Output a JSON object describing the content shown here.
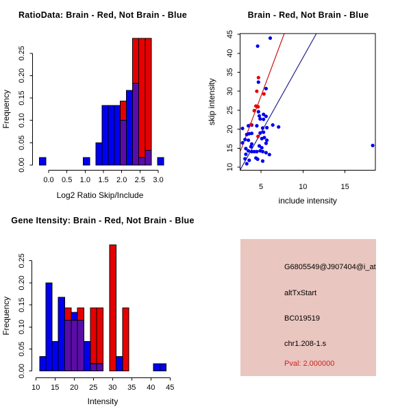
{
  "colors": {
    "blue": "#0000EE",
    "red": "#E60000",
    "purple": "#5A0CA8",
    "line_red": "#CC1111",
    "line_blue": "#202090",
    "axis_black": "#000000",
    "panel_pink": "#E9C6BF",
    "pval_red": "#CC2222"
  },
  "chart_data": [
    {
      "id": "ratio_hist",
      "type": "bar",
      "title": "RatioData: Brain - Red, Not Brain - Blue",
      "xlabel": "Log2 Ratio Skip/Include",
      "ylabel": "Frequency",
      "legend_note": "Brain = red, Not Brain = blue, overlap shown purple",
      "xticks": [
        "0.0",
        "0.5",
        "1.0",
        "1.5",
        "2.0",
        "2.5",
        "3.0"
      ],
      "yticks": [
        "0.00",
        "0.05",
        "0.10",
        "0.15",
        "0.20",
        "0.25"
      ],
      "xlim": [
        -0.4,
        3.3
      ],
      "ylim": [
        0,
        0.283
      ],
      "grid": false,
      "bars": [
        {
          "x0": -0.25,
          "x1": -0.08,
          "segs": [
            [
              "blue",
              0,
              0.017
            ]
          ]
        },
        {
          "x0": 0.95,
          "x1": 1.12,
          "segs": [
            [
              "blue",
              0,
              0.017
            ]
          ]
        },
        {
          "x0": 1.29,
          "x1": 1.46,
          "segs": [
            [
              "blue",
              0,
              0.05
            ]
          ]
        },
        {
          "x0": 1.46,
          "x1": 1.63,
          "segs": [
            [
              "blue",
              0,
              0.133
            ]
          ]
        },
        {
          "x0": 1.63,
          "x1": 1.79,
          "segs": [
            [
              "blue",
              0,
              0.133
            ]
          ]
        },
        {
          "x0": 1.79,
          "x1": 1.96,
          "segs": [
            [
              "blue",
              0,
              0.133
            ]
          ]
        },
        {
          "x0": 1.96,
          "x1": 2.13,
          "segs": [
            [
              "purple",
              0,
              0.1
            ],
            [
              "red",
              0.1,
              0.143
            ]
          ]
        },
        {
          "x0": 2.13,
          "x1": 2.3,
          "segs": [
            [
              "blue",
              0,
              0.167
            ]
          ]
        },
        {
          "x0": 2.3,
          "x1": 2.47,
          "segs": [
            [
              "purple",
              0,
              0.183
            ],
            [
              "red",
              0.183,
              0.283
            ]
          ]
        },
        {
          "x0": 2.47,
          "x1": 2.64,
          "segs": [
            [
              "purple",
              0,
              0.017
            ],
            [
              "red",
              0.017,
              0.283
            ]
          ]
        },
        {
          "x0": 2.64,
          "x1": 2.81,
          "segs": [
            [
              "purple",
              0,
              0.033
            ],
            [
              "red",
              0.033,
              0.283
            ]
          ]
        },
        {
          "x0": 2.98,
          "x1": 3.15,
          "segs": [
            [
              "blue",
              0,
              0.017
            ]
          ]
        }
      ]
    },
    {
      "id": "intensity_scatter",
      "type": "scatter",
      "title": "Brain - Red, Not Brain - Blue",
      "xlabel": "include intensity",
      "ylabel": "skip intensity",
      "xticks": [
        "5",
        "10",
        "15"
      ],
      "yticks": [
        "10",
        "15",
        "20",
        "25",
        "30",
        "35",
        "40",
        "45"
      ],
      "xlim": [
        2.5,
        18.6
      ],
      "ylim": [
        9.2,
        45.2
      ],
      "grid": false,
      "series": [
        {
          "name": "Not Brain",
          "color": "blue",
          "points": [
            [
              6.1,
              44.0
            ],
            [
              4.6,
              41.9
            ],
            [
              4.7,
              32.4
            ],
            [
              5.6,
              30.7
            ],
            [
              4.7,
              24.6
            ],
            [
              5.3,
              23.9
            ],
            [
              5.6,
              23.4
            ],
            [
              4.8,
              23.5
            ],
            [
              4.9,
              22.7
            ],
            [
              5.3,
              22.6
            ],
            [
              2.8,
              20.2
            ],
            [
              3.5,
              20.9
            ],
            [
              3.9,
              21.1
            ],
            [
              4.5,
              20.9
            ],
            [
              5.2,
              20.3
            ],
            [
              5.7,
              20.4
            ],
            [
              6.4,
              21.1
            ],
            [
              7.1,
              20.6
            ],
            [
              3.3,
              18.6
            ],
            [
              3.6,
              18.8
            ],
            [
              3.9,
              18.9
            ],
            [
              4.9,
              19.0
            ],
            [
              5.3,
              19.2
            ],
            [
              3.1,
              17.3
            ],
            [
              3.5,
              17.1
            ],
            [
              5.1,
              17.5
            ],
            [
              5.4,
              17.8
            ],
            [
              5.7,
              17.1
            ],
            [
              5.6,
              16.3
            ],
            [
              2.8,
              16.4
            ],
            [
              3.9,
              16.1
            ],
            [
              3.8,
              15.4
            ],
            [
              3.2,
              14.9
            ],
            [
              4.8,
              15.6
            ],
            [
              5.1,
              15.1
            ],
            [
              3.5,
              14.3
            ],
            [
              3.9,
              14.1
            ],
            [
              4.2,
              14.1
            ],
            [
              4.5,
              14.1
            ],
            [
              4.9,
              14.3
            ],
            [
              5.2,
              14.1
            ],
            [
              5.6,
              13.8
            ],
            [
              6.0,
              13.3
            ],
            [
              3.2,
              13.4
            ],
            [
              3.1,
              12.2
            ],
            [
              4.4,
              12.4
            ],
            [
              3.6,
              11.8
            ],
            [
              4.6,
              12.1
            ],
            [
              5.2,
              11.6
            ],
            [
              3.3,
              10.9
            ],
            [
              18.3,
              15.7
            ]
          ]
        },
        {
          "name": "Brain",
          "color": "red",
          "points": [
            [
              4.7,
              33.6
            ],
            [
              4.5,
              30.0
            ],
            [
              5.35,
              29.3
            ],
            [
              4.4,
              26.1
            ],
            [
              4.65,
              25.9
            ],
            [
              4.2,
              24.9
            ],
            [
              3.8,
              21.2
            ],
            [
              4.65,
              18.1
            ]
          ]
        }
      ],
      "lines": [
        {
          "color": "line_red",
          "from": [
            2.57,
            14.3
          ],
          "to": [
            7.77,
            45.2
          ]
        },
        {
          "color": "line_blue",
          "from": [
            2.5,
            9.2
          ],
          "to": [
            11.6,
            45.2
          ]
        }
      ]
    },
    {
      "id": "gene_hist",
      "type": "bar",
      "title": "Gene Itensity: Brain - Red, Not Brain - Blue",
      "xlabel": "Intensity",
      "ylabel": "Frequency",
      "legend_note": "Brain = red, Not Brain = blue, overlap shown purple",
      "xticks": [
        "10",
        "15",
        "20",
        "25",
        "30",
        "35",
        "40",
        "45"
      ],
      "yticks": [
        "0.00",
        "0.05",
        "0.10",
        "0.15",
        "0.20",
        "0.25"
      ],
      "xlim": [
        10,
        45
      ],
      "ylim": [
        0,
        0.286
      ],
      "grid": false,
      "bars": [
        {
          "x0": 11.0,
          "x1": 12.6,
          "segs": [
            [
              "blue",
              0,
              0.033
            ]
          ]
        },
        {
          "x0": 12.6,
          "x1": 14.2,
          "segs": [
            [
              "blue",
              0,
              0.2
            ]
          ]
        },
        {
          "x0": 14.2,
          "x1": 15.8,
          "segs": [
            [
              "blue",
              0,
              0.067
            ]
          ]
        },
        {
          "x0": 15.8,
          "x1": 17.5,
          "segs": [
            [
              "blue",
              0,
              0.167
            ]
          ]
        },
        {
          "x0": 17.5,
          "x1": 19.2,
          "segs": [
            [
              "purple",
              0,
              0.115
            ],
            [
              "red",
              0.115,
              0.143
            ]
          ]
        },
        {
          "x0": 19.2,
          "x1": 20.8,
          "segs": [
            [
              "purple",
              0,
              0.115
            ],
            [
              "blue",
              0.115,
              0.133
            ]
          ]
        },
        {
          "x0": 20.8,
          "x1": 22.5,
          "segs": [
            [
              "purple",
              0,
              0.115
            ],
            [
              "red",
              0.115,
              0.143
            ]
          ]
        },
        {
          "x0": 22.5,
          "x1": 24.2,
          "segs": [
            [
              "blue",
              0,
              0.067
            ]
          ]
        },
        {
          "x0": 24.2,
          "x1": 25.8,
          "segs": [
            [
              "purple",
              0,
              0.017
            ],
            [
              "red",
              0.017,
              0.143
            ]
          ]
        },
        {
          "x0": 25.8,
          "x1": 27.5,
          "segs": [
            [
              "purple",
              0,
              0.017
            ],
            [
              "red",
              0.017,
              0.143
            ]
          ]
        },
        {
          "x0": 29.2,
          "x1": 30.9,
          "segs": [
            [
              "red",
              0,
              0.286
            ]
          ]
        },
        {
          "x0": 30.9,
          "x1": 32.6,
          "segs": [
            [
              "blue",
              0,
              0.033
            ]
          ]
        },
        {
          "x0": 32.6,
          "x1": 34.2,
          "segs": [
            [
              "red",
              0,
              0.143
            ]
          ]
        },
        {
          "x0": 40.7,
          "x1": 42.4,
          "segs": [
            [
              "blue",
              0,
              0.017
            ]
          ]
        },
        {
          "x0": 42.4,
          "x1": 44.0,
          "segs": [
            [
              "blue",
              0,
              0.017
            ]
          ]
        }
      ]
    }
  ],
  "info_panel": {
    "background": "#E9C6BF",
    "lines": [
      {
        "text": "G6805549@J907404@i_at",
        "color": "#000000"
      },
      {
        "text": "altTxStart",
        "color": "#000000"
      },
      {
        "text": "BC019519",
        "color": "#000000"
      },
      {
        "text": "chr1.208-1.s",
        "color": "#000000"
      },
      {
        "text": "Pval: 2.000000",
        "color": "#CC2222"
      }
    ]
  }
}
